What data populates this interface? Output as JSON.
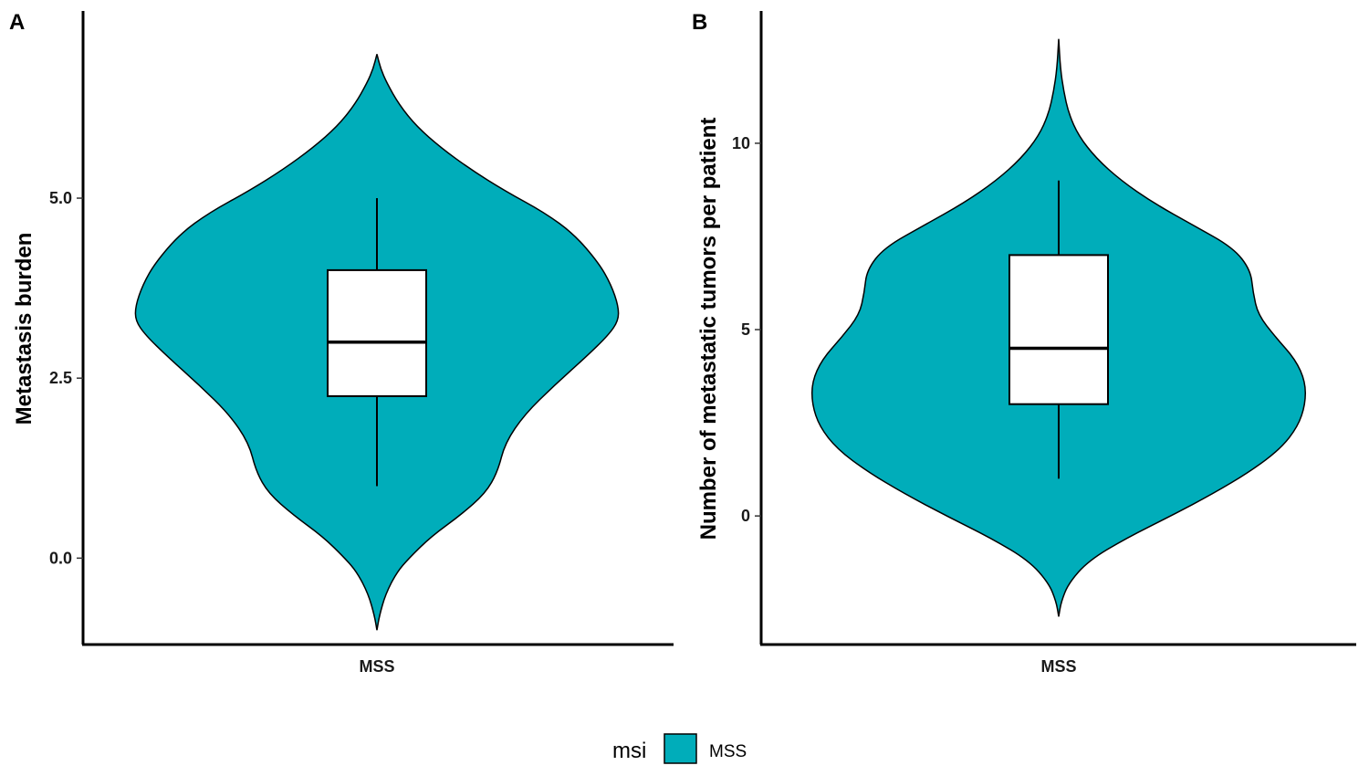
{
  "legend": {
    "title": "msi",
    "entries": [
      {
        "label": "MSS",
        "color": "#00ADBA"
      }
    ]
  },
  "chart_data": [
    {
      "type": "violin",
      "panel_label": "A",
      "ylabel": "Metastasis burden",
      "xlabel": "",
      "categories": [
        "MSS"
      ],
      "ylim": [
        -1.2,
        7.6
      ],
      "yticks": [
        0.0,
        2.5,
        5.0
      ],
      "ytick_labels": [
        "0.0",
        "2.5",
        "5.0"
      ],
      "fill_color": "#00ADBA",
      "series": [
        {
          "category": "MSS",
          "violin_extent": [
            -1.0,
            7.0
          ],
          "violin_profile": [
            [
              -1.0,
              0.0
            ],
            [
              -0.8,
              0.01
            ],
            [
              -0.5,
              0.035
            ],
            [
              -0.2,
              0.08
            ],
            [
              0.0,
              0.13
            ],
            [
              0.3,
              0.22
            ],
            [
              0.6,
              0.34
            ],
            [
              0.9,
              0.44
            ],
            [
              1.2,
              0.49
            ],
            [
              1.6,
              0.52
            ],
            [
              2.0,
              0.6
            ],
            [
              2.4,
              0.72
            ],
            [
              2.8,
              0.85
            ],
            [
              3.1,
              0.94
            ],
            [
              3.3,
              0.98
            ],
            [
              3.5,
              0.98
            ],
            [
              3.8,
              0.95
            ],
            [
              4.1,
              0.9
            ],
            [
              4.5,
              0.8
            ],
            [
              4.8,
              0.68
            ],
            [
              5.1,
              0.52
            ],
            [
              5.4,
              0.38
            ],
            [
              5.7,
              0.26
            ],
            [
              6.0,
              0.16
            ],
            [
              6.3,
              0.09
            ],
            [
              6.6,
              0.04
            ],
            [
              6.8,
              0.015
            ],
            [
              7.0,
              0.0
            ]
          ],
          "box": {
            "whisker_low": 1.0,
            "q1": 2.25,
            "median": 3.0,
            "q3": 4.0,
            "whisker_high": 5.0
          }
        }
      ]
    },
    {
      "type": "violin",
      "panel_label": "B",
      "ylabel": "Number of metastatic tumors per patient",
      "xlabel": "",
      "categories": [
        "MSS"
      ],
      "ylim": [
        -3.45,
        13.55
      ],
      "yticks": [
        0,
        5,
        10
      ],
      "ytick_labels": [
        "0",
        "5",
        "10"
      ],
      "fill_color": "#00ADBA",
      "series": [
        {
          "category": "MSS",
          "violin_extent": [
            -2.7,
            12.8
          ],
          "violin_profile": [
            [
              -2.7,
              0.0
            ],
            [
              -2.3,
              0.01
            ],
            [
              -1.8,
              0.04
            ],
            [
              -1.2,
              0.12
            ],
            [
              -0.6,
              0.27
            ],
            [
              0.0,
              0.45
            ],
            [
              0.6,
              0.62
            ],
            [
              1.2,
              0.77
            ],
            [
              1.8,
              0.89
            ],
            [
              2.4,
              0.96
            ],
            [
              3.0,
              0.99
            ],
            [
              3.6,
              0.99
            ],
            [
              4.2,
              0.95
            ],
            [
              4.8,
              0.87
            ],
            [
              5.4,
              0.8
            ],
            [
              6.0,
              0.78
            ],
            [
              6.6,
              0.77
            ],
            [
              7.2,
              0.7
            ],
            [
              7.8,
              0.54
            ],
            [
              8.4,
              0.38
            ],
            [
              9.0,
              0.25
            ],
            [
              9.6,
              0.15
            ],
            [
              10.2,
              0.08
            ],
            [
              10.8,
              0.04
            ],
            [
              11.4,
              0.02
            ],
            [
              12.0,
              0.007
            ],
            [
              12.8,
              0.0
            ]
          ],
          "box": {
            "whisker_low": 1.0,
            "q1": 3.0,
            "median": 4.5,
            "q3": 7.0,
            "whisker_high": 9.0
          }
        }
      ]
    }
  ]
}
